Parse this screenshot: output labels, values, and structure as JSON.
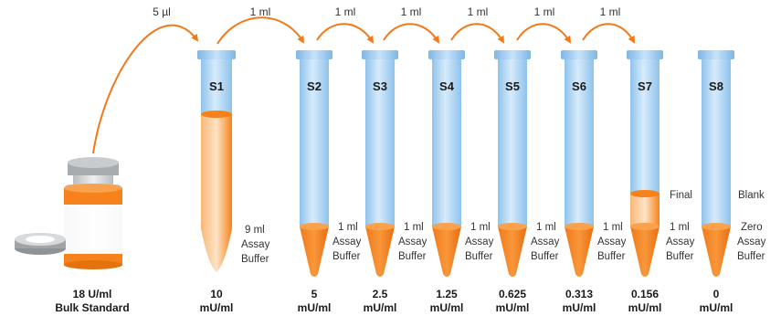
{
  "colors": {
    "orange": "#f7821b",
    "tube_blue": "#a9d2f2",
    "tube_cap": "#8ec4ee",
    "arrow": "#f07a1a"
  },
  "stock": {
    "concentration": "18 U/ml",
    "label": "Bulk Standard"
  },
  "transfers": [
    "5 µl",
    "1 ml",
    "1 ml",
    "1 ml",
    "1 ml",
    "1 ml",
    "1 ml"
  ],
  "tubes": [
    {
      "name": "S1",
      "buffer": [
        "9 ml",
        "Assay",
        "Buffer"
      ],
      "conc_value": "10",
      "conc_unit": "mU/ml"
    },
    {
      "name": "S2",
      "buffer": [
        "1 ml",
        "Assay",
        "Buffer"
      ],
      "conc_value": "5",
      "conc_unit": "mU/ml"
    },
    {
      "name": "S3",
      "buffer": [
        "1 ml",
        "Assay",
        "Buffer"
      ],
      "conc_value": "2.5",
      "conc_unit": "mU/ml"
    },
    {
      "name": "S4",
      "buffer": [
        "1 ml",
        "Assay",
        "Buffer"
      ],
      "conc_value": "1.25",
      "conc_unit": "mU/ml"
    },
    {
      "name": "S5",
      "buffer": [
        "1 ml",
        "Assay",
        "Buffer"
      ],
      "conc_value": "0.625",
      "conc_unit": "mU/ml"
    },
    {
      "name": "S6",
      "buffer": [
        "1 ml",
        "Assay",
        "Buffer"
      ],
      "conc_value": "0.313",
      "conc_unit": "mU/ml"
    },
    {
      "name": "S7",
      "buffer": [
        "1 ml",
        "Assay",
        "Buffer"
      ],
      "conc_value": "0.156",
      "conc_unit": "mU/ml",
      "note": "Final"
    },
    {
      "name": "S8",
      "buffer": [
        "Zero",
        "Assay",
        "Buffer"
      ],
      "conc_value": "0",
      "conc_unit": "mU/ml",
      "note": "Blank"
    }
  ]
}
